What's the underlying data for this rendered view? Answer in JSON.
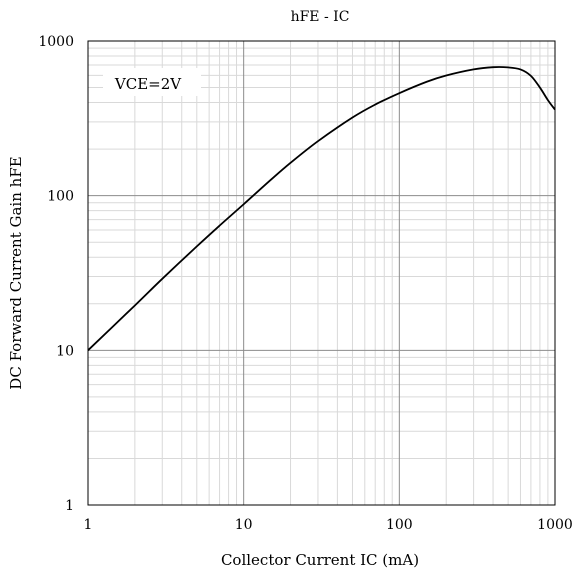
{
  "chart_data": {
    "type": "line",
    "title": "hFE - IC",
    "xlabel": "Collector Current IC (mA)",
    "ylabel": "DC Forward Current Gain hFE",
    "x_scale": "log",
    "y_scale": "log",
    "xlim": [
      1,
      1000
    ],
    "ylim": [
      1,
      1000
    ],
    "grid": true,
    "x_ticks": [
      "1",
      "10",
      "100",
      "1000"
    ],
    "y_ticks": [
      "1",
      "10",
      "100",
      "1000"
    ],
    "annotation": "VCE=2V",
    "series": [
      {
        "color": "#000000",
        "x": [
          1,
          2,
          3,
          5,
          7,
          10,
          15,
          20,
          30,
          50,
          70,
          100,
          150,
          200,
          300,
          400,
          500,
          600,
          700,
          800,
          900,
          1000
        ],
        "y": [
          10,
          19.5,
          29,
          47,
          64,
          88,
          127,
          163,
          225,
          320,
          388,
          460,
          545,
          598,
          655,
          677,
          675,
          655,
          595,
          500,
          415,
          360
        ]
      }
    ]
  }
}
